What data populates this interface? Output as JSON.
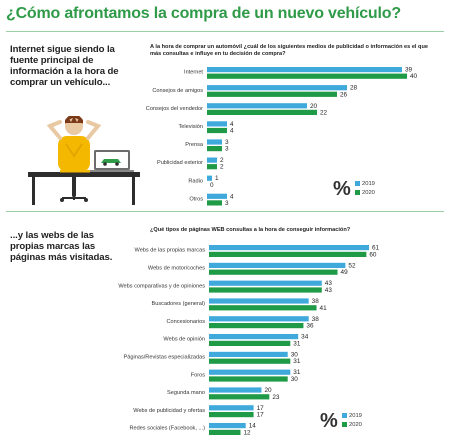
{
  "title": "¿Cómo afrontamos la compra de un nuevo vehículo?",
  "colors": {
    "y2019": "#3fa9dc",
    "y2020": "#1f9a46",
    "title": "#2f9a48"
  },
  "section1": {
    "heading": "Internet sigue siendo la\nfuente principal de\ninformación a la hora de\ncomprar un vehículo..."
  },
  "section2": {
    "heading": "...y las webs de las\npropias marcas las\npáginas más visitadas."
  },
  "legend": {
    "symbol": "%",
    "label_2019": "2019",
    "label_2020": "2020"
  },
  "chart_data": [
    {
      "type": "bar",
      "orientation": "horizontal",
      "title": "A la hora de comprar un automóvil ¿cuál de los siguientes medios de publicidad o información es el que más consultas e influye en tu decisión de compra?",
      "categories": [
        "Internet",
        "Consejos de amigos",
        "Consejos del vendedor",
        "Televisión",
        "Prensa",
        "Publicidad exterior",
        "Radio",
        "Otros"
      ],
      "series": [
        {
          "name": "2019",
          "values": [
            39,
            28,
            20,
            4,
            3,
            2,
            1,
            4
          ]
        },
        {
          "name": "2020",
          "values": [
            40,
            26,
            22,
            4,
            3,
            2,
            0,
            3
          ]
        }
      ],
      "xlim": [
        0,
        40
      ],
      "legend": "bottom-right",
      "grid": false
    },
    {
      "type": "bar",
      "orientation": "horizontal",
      "title": "¿Qué tipos de páginas WEB consultas a la hora de conseguir información?",
      "categories": [
        "Webs de las propias marcas",
        "Webs de motor/coches",
        "Webs comparativas y de opiniones",
        "Buscadores (general)",
        "Concesionarios",
        "Webs de opinión",
        "Páginas/Revistas especializadas",
        "Foros",
        "Segunda mano",
        "Webs de publicidad y ofertas",
        "Redes sociales (Facebook, ...)"
      ],
      "series": [
        {
          "name": "2019",
          "values": [
            61,
            52,
            43,
            38,
            38,
            34,
            30,
            31,
            20,
            17,
            14
          ]
        },
        {
          "name": "2020",
          "values": [
            60,
            49,
            43,
            41,
            36,
            31,
            31,
            30,
            23,
            17,
            12
          ]
        }
      ],
      "xlim": [
        0,
        61
      ],
      "legend": "bottom-right",
      "grid": false
    }
  ]
}
